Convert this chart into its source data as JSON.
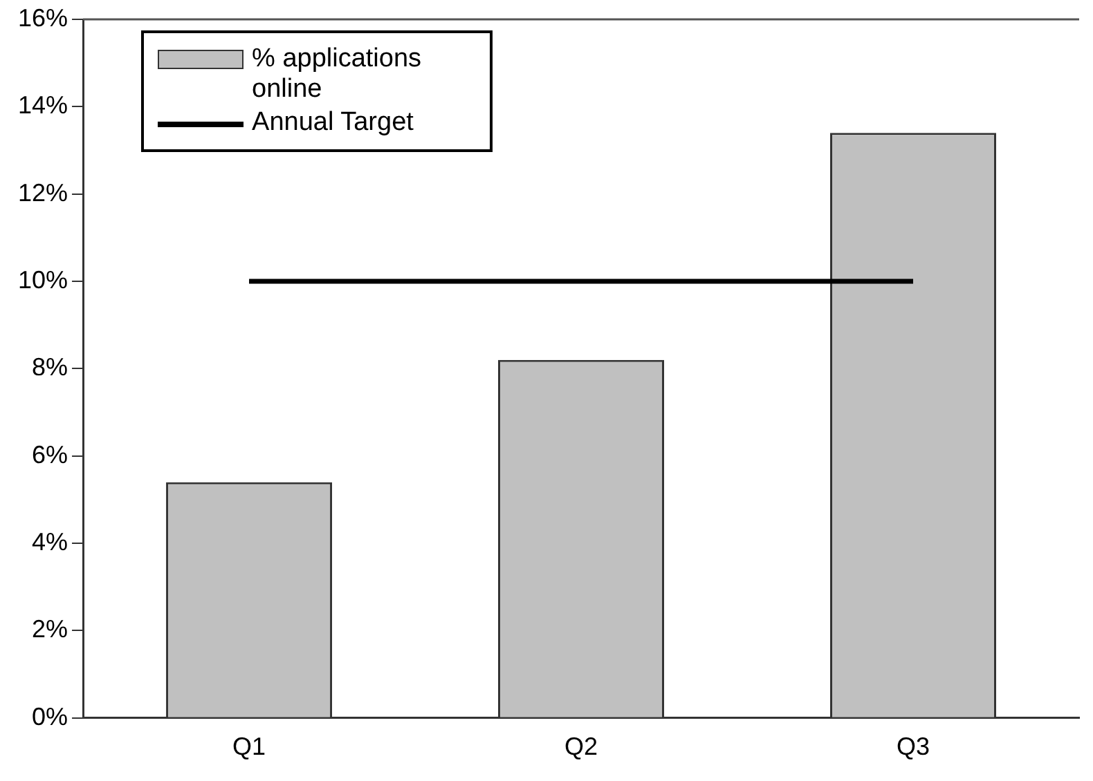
{
  "chart_data": {
    "type": "bar",
    "categories": [
      "Q1",
      "Q2",
      "Q3"
    ],
    "series": [
      {
        "name": "% applications online",
        "color": "#c0c0c0",
        "values": [
          5.4,
          8.2,
          13.4
        ]
      },
      {
        "name": "Annual Target",
        "type": "line",
        "color": "#000000",
        "values": [
          10,
          10,
          10
        ]
      }
    ],
    "ylim": [
      0,
      16
    ],
    "yticks": [
      {
        "value": 0,
        "label": "0%"
      },
      {
        "value": 2,
        "label": "2%"
      },
      {
        "value": 4,
        "label": "4%"
      },
      {
        "value": 6,
        "label": "6%"
      },
      {
        "value": 8,
        "label": "8%"
      },
      {
        "value": 10,
        "label": "10%"
      },
      {
        "value": 12,
        "label": "12%"
      },
      {
        "value": 14,
        "label": "14%"
      },
      {
        "value": 16,
        "label": "16%"
      }
    ],
    "grid": false,
    "legend": "top left"
  }
}
